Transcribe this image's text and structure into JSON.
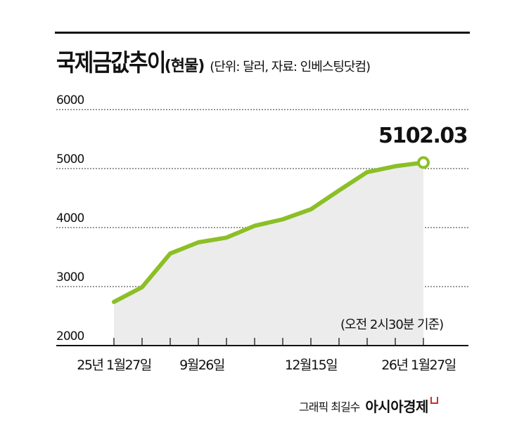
{
  "header": {
    "title": "국제금값추이",
    "subtitle": "(현물)",
    "note": "(단위: 달러, 자료: 인베스팅닷컴)"
  },
  "chart_data": {
    "type": "line",
    "title": "국제금값추이 (현물)",
    "subtitle": "(단위: 달러, 자료: 인베스팅닷컴)",
    "xlabel": "",
    "ylabel": "달러",
    "ylim": [
      2000,
      6000
    ],
    "yticks": [
      2000,
      3000,
      4000,
      5000,
      6000
    ],
    "grid": "horizontal dotted",
    "area_fill": true,
    "x_tick_labels": [
      "25년 1월27일",
      "9월26일",
      "12월15일",
      "26년 1월27일"
    ],
    "x": [
      "25-01-27",
      "p2",
      "p3",
      "p4",
      "p5",
      "p6",
      "p7",
      "p8",
      "p9",
      "p10",
      "p11",
      "26-01-27"
    ],
    "series": [
      {
        "name": "국제금값(현물)",
        "color": "#8cbf26",
        "values": [
          2740,
          2990,
          3560,
          3750,
          3830,
          4030,
          4140,
          4310,
          4630,
          4940,
          5040,
          5102.03
        ]
      }
    ],
    "annotations": [
      "5102.03",
      "(오전 2시30분 기준)"
    ]
  },
  "axis": {
    "y_labels": [
      "6000",
      "5000",
      "4000",
      "3000",
      "2000"
    ],
    "x_labels": [
      "25년 1월27일",
      "9월26일",
      "12월15일",
      "26년 1월27일"
    ]
  },
  "annotations": {
    "end_value": "5102.03",
    "basis": "(오전 2시30분 기준)"
  },
  "footer": {
    "credit": "그래픽 최길수",
    "brand": "아시아경제"
  },
  "colors": {
    "line": "#8cbf26",
    "fill": "#ececec",
    "grid": "#777777",
    "brand_mark": "#d42a2a"
  }
}
